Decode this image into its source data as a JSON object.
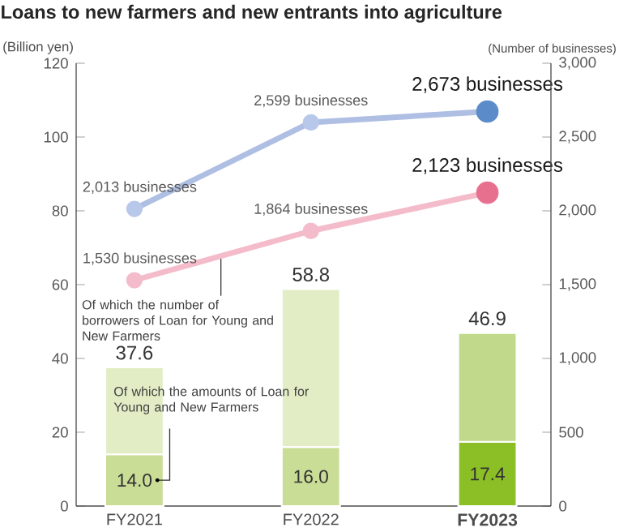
{
  "chart_data": {
    "type": "bar",
    "title": "Loans to new farmers and new entrants into agriculture",
    "ylabel": "(Billion yen)",
    "y2label": "(Number of businesses)",
    "categories": [
      "FY2021",
      "FY2022",
      "FY2023"
    ],
    "stacked": true,
    "series": [
      {
        "name": "Of which the amounts of Loan for Young and New Farmers",
        "colors": [
          "#cadd96",
          "#cadd96",
          "#8cbf26"
        ],
        "values": [
          14.0,
          16.0,
          17.4
        ],
        "value_labels": [
          "14.0",
          "16.0",
          "17.4"
        ]
      },
      {
        "colors": [
          "#e2edc6",
          "#e2edc6",
          "#c0d98a"
        ],
        "values": [
          23.6,
          42.8,
          29.5
        ]
      },
      {
        "type": "line",
        "axis": "y2",
        "color": "#aebfe3",
        "colors": [
          "#b8c8ea",
          "#b8c8ea",
          "#5b8bc9"
        ],
        "values": [
          2013,
          2599,
          2673
        ],
        "value_labels": [
          "2,013 businesses",
          "2,599 businesses",
          "2,673 businesses"
        ]
      },
      {
        "type": "line",
        "axis": "y2",
        "name": "Of which the number of borrowers of Loan for Young and New Farmers",
        "color": "#f4bccb",
        "colors": [
          "#f4bccb",
          "#f4bccb",
          "#e8708f"
        ],
        "values": [
          1530,
          1864,
          2123
        ],
        "value_labels": [
          "1,530 businesses",
          "1,864 businesses",
          "2,123 businesses"
        ]
      }
    ],
    "totals": [
      "37.6",
      "58.8",
      "46.9"
    ],
    "ylim": [
      0,
      120
    ],
    "yticks": [
      0,
      20,
      40,
      60,
      80,
      100,
      120
    ],
    "y2lim": [
      0,
      3000
    ],
    "y2ticks": [
      0,
      500,
      {
        "value": 1000,
        "label": "1,000"
      },
      {
        "value": 1500,
        "label": "1,500"
      },
      {
        "value": 2000,
        "label": "2,000"
      },
      {
        "value": 2500,
        "label": "2,500"
      },
      {
        "value": 3000,
        "label": "3,000"
      }
    ],
    "marker": "circle",
    "line_style": "solid"
  }
}
